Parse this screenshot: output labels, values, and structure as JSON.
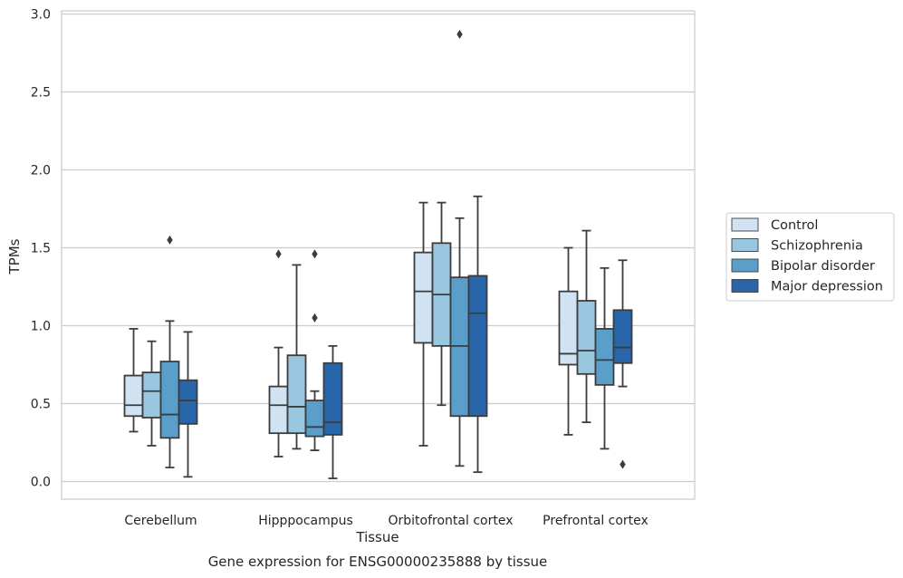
{
  "chart_data": {
    "type": "box",
    "title": "",
    "caption": "Gene expression for ENSG00000235888 by tissue",
    "xlabel": "Tissue",
    "ylabel": "TPMs",
    "ylim": [
      -0.12,
      3.02
    ],
    "yticks": [
      0.0,
      0.5,
      1.0,
      1.5,
      2.0,
      2.5,
      3.0
    ],
    "ytick_labels": [
      "0.0",
      "0.5",
      "1.0",
      "1.5",
      "2.0",
      "2.5",
      "3.0"
    ],
    "grid": "horizontal",
    "legend_position": "right",
    "categories": [
      "Cerebellum",
      "Hipppocampus",
      "Orbitofrontal cortex",
      "Prefrontal cortex"
    ],
    "series": [
      {
        "name": "Control",
        "color": "#d1e2f2",
        "boxes": [
          {
            "whislo": 0.32,
            "q1": 0.42,
            "med": 0.49,
            "q3": 0.68,
            "whishi": 0.98,
            "fliers": []
          },
          {
            "whislo": 0.16,
            "q1": 0.31,
            "med": 0.49,
            "q3": 0.61,
            "whishi": 0.86,
            "fliers": [
              1.46
            ]
          },
          {
            "whislo": 0.23,
            "q1": 0.89,
            "med": 1.22,
            "q3": 1.47,
            "whishi": 1.79,
            "fliers": []
          },
          {
            "whislo": 0.3,
            "q1": 0.75,
            "med": 0.82,
            "q3": 1.22,
            "whishi": 1.5,
            "fliers": []
          }
        ]
      },
      {
        "name": "Schizophrenia",
        "color": "#9ac7e0",
        "boxes": [
          {
            "whislo": 0.23,
            "q1": 0.41,
            "med": 0.58,
            "q3": 0.7,
            "whishi": 0.9,
            "fliers": []
          },
          {
            "whislo": 0.21,
            "q1": 0.31,
            "med": 0.48,
            "q3": 0.81,
            "whishi": 1.39,
            "fliers": []
          },
          {
            "whislo": 0.49,
            "q1": 0.87,
            "med": 1.2,
            "q3": 1.53,
            "whishi": 1.79,
            "fliers": []
          },
          {
            "whislo": 0.38,
            "q1": 0.69,
            "med": 0.84,
            "q3": 1.16,
            "whishi": 1.61,
            "fliers": []
          }
        ]
      },
      {
        "name": "Bipolar disorder",
        "color": "#5a9fca",
        "boxes": [
          {
            "whislo": 0.09,
            "q1": 0.28,
            "med": 0.43,
            "q3": 0.77,
            "whishi": 1.03,
            "fliers": [
              1.55
            ]
          },
          {
            "whislo": 0.2,
            "q1": 0.29,
            "med": 0.35,
            "q3": 0.52,
            "whishi": 0.58,
            "fliers": [
              1.05,
              1.46
            ]
          },
          {
            "whislo": 0.1,
            "q1": 0.42,
            "med": 0.87,
            "q3": 1.31,
            "whishi": 1.69,
            "fliers": [
              2.87
            ]
          },
          {
            "whislo": 0.21,
            "q1": 0.62,
            "med": 0.78,
            "q3": 0.98,
            "whishi": 1.37,
            "fliers": []
          }
        ]
      },
      {
        "name": "Major depression",
        "color": "#2866a9",
        "boxes": [
          {
            "whislo": 0.03,
            "q1": 0.37,
            "med": 0.52,
            "q3": 0.65,
            "whishi": 0.96,
            "fliers": []
          },
          {
            "whislo": 0.02,
            "q1": 0.3,
            "med": 0.38,
            "q3": 0.76,
            "whishi": 0.87,
            "fliers": []
          },
          {
            "whislo": 0.06,
            "q1": 0.42,
            "med": 1.08,
            "q3": 1.32,
            "whishi": 1.83,
            "fliers": []
          },
          {
            "whislo": 0.61,
            "q1": 0.76,
            "med": 0.86,
            "q3": 1.1,
            "whishi": 1.42,
            "fliers": [
              0.11
            ]
          }
        ]
      }
    ]
  }
}
